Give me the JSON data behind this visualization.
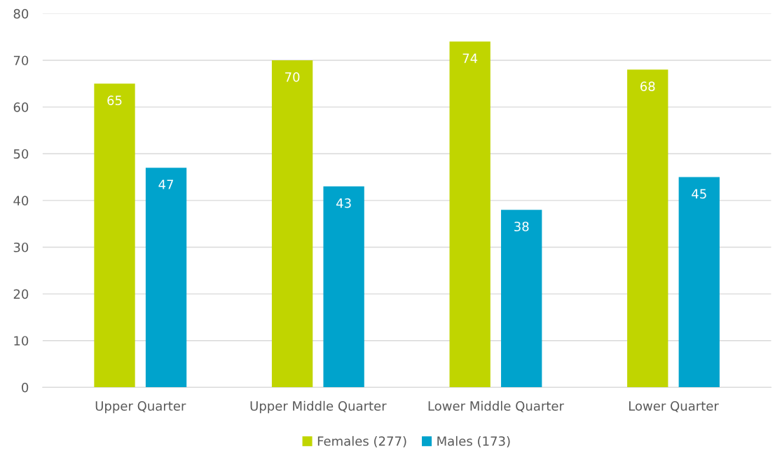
{
  "chart_data": {
    "type": "bar",
    "categories": [
      "Upper Quarter",
      "Upper Middle Quarter",
      "Lower Middle Quarter",
      "Lower Quarter"
    ],
    "series": [
      {
        "name": "Females (277)",
        "color": "#c0d500",
        "values": [
          65,
          70,
          74,
          68
        ]
      },
      {
        "name": "Males (173)",
        "color": "#00a3cc",
        "values": [
          47,
          43,
          38,
          45
        ]
      }
    ],
    "ylim": [
      0,
      80
    ],
    "yticks": [
      0,
      10,
      20,
      30,
      40,
      50,
      60,
      70,
      80
    ],
    "grid": "y",
    "legend": "bottom",
    "data_labels": true
  }
}
